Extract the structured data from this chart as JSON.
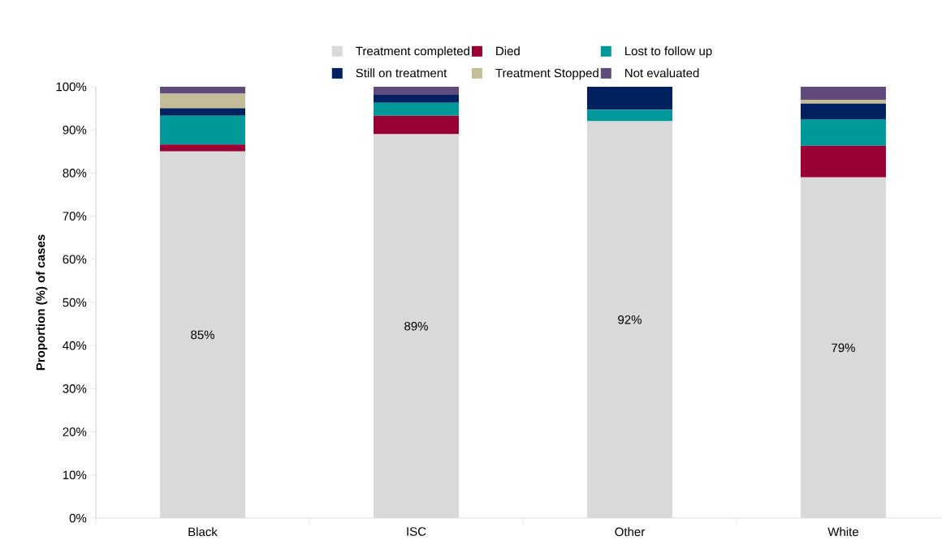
{
  "chart_data": {
    "type": "bar",
    "stacked": true,
    "ylabel": "Proportion (%) of cases",
    "categories": [
      "Black",
      "ISC",
      "Other",
      "White"
    ],
    "series": [
      {
        "name": "Treatment completed",
        "color": "#d9d9d9",
        "values": [
          85,
          89,
          92,
          79
        ],
        "value_labels": [
          "85%",
          "89%",
          "92%",
          "79%"
        ]
      },
      {
        "name": "Died",
        "color": "#990033",
        "values": [
          1.6,
          4.3,
          0,
          7.3
        ]
      },
      {
        "name": "Lost to follow up",
        "color": "#009999",
        "values": [
          6.7,
          3.0,
          2.7,
          6.2
        ]
      },
      {
        "name": "Still on treatment",
        "color": "#002060",
        "values": [
          1.7,
          1.8,
          5.3,
          3.6
        ]
      },
      {
        "name": "Treatment Stopped",
        "color": "#c4bd97",
        "values": [
          3.4,
          0,
          0,
          0.9
        ]
      },
      {
        "name": "Not evaluated",
        "color": "#604a7b",
        "values": [
          1.6,
          1.9,
          0,
          3.0
        ]
      }
    ],
    "ylim": [
      0,
      100
    ],
    "yticks": [
      {
        "value": 0,
        "label": "0%"
      },
      {
        "value": 10,
        "label": "10%"
      },
      {
        "value": 20,
        "label": "20%"
      },
      {
        "value": 30,
        "label": "30%"
      },
      {
        "value": 40,
        "label": "40%"
      },
      {
        "value": 50,
        "label": "50%"
      },
      {
        "value": 60,
        "label": "60%"
      },
      {
        "value": 70,
        "label": "70%"
      },
      {
        "value": 80,
        "label": "80%"
      },
      {
        "value": 90,
        "label": "90%"
      },
      {
        "value": 100,
        "label": "100%"
      }
    ],
    "legend": "top",
    "grid": false
  }
}
